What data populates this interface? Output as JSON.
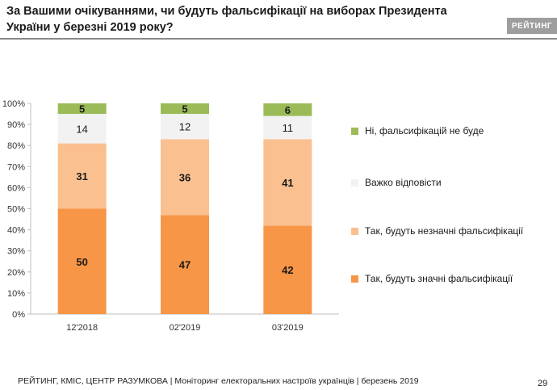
{
  "header": {
    "title": "За Вашими очікуваннями, чи будуть фальсифікації на виборах Президента України у березні 2019 року?",
    "brand": "РЕЙТИНГ"
  },
  "chart_data": {
    "type": "stacked-bar",
    "categories": [
      "12'2018",
      "02'2019",
      "03'2019"
    ],
    "y_ticks": [
      "0%",
      "10%",
      "20%",
      "30%",
      "40%",
      "50%",
      "60%",
      "70%",
      "80%",
      "90%",
      "100%"
    ],
    "ylim": [
      0,
      100
    ],
    "series": [
      {
        "name": "Так, будуть значні фальсифікації",
        "color": "#f79646",
        "values": [
          50,
          47,
          42
        ]
      },
      {
        "name": "Так, будуть незначні фальсифікації",
        "color": "#fac090",
        "values": [
          31,
          36,
          41
        ]
      },
      {
        "name": "Важко відповісти",
        "color": "#f2f2f2",
        "values": [
          14,
          12,
          11
        ]
      },
      {
        "name": "Ні, фальсифікацій не буде",
        "color": "#9bbb59",
        "values": [
          5,
          5,
          6
        ]
      }
    ],
    "legend": [
      {
        "name": "Ні, фальсифікацій не буде",
        "color": "#9bbb59"
      },
      {
        "name": "Важко відповісти",
        "color": "#f2f2f2"
      },
      {
        "name": "Так, будуть незначні фальсифікації",
        "color": "#fac090"
      },
      {
        "name": "Так, будуть значні фальсифікації",
        "color": "#f79646"
      }
    ]
  },
  "footer": {
    "source": "РЕЙТИНГ, КМІС, ЦЕНТР РАЗУМКОВА  | Моніторинг електоральних настроїв українців | березень 2019",
    "page_number": "29"
  }
}
